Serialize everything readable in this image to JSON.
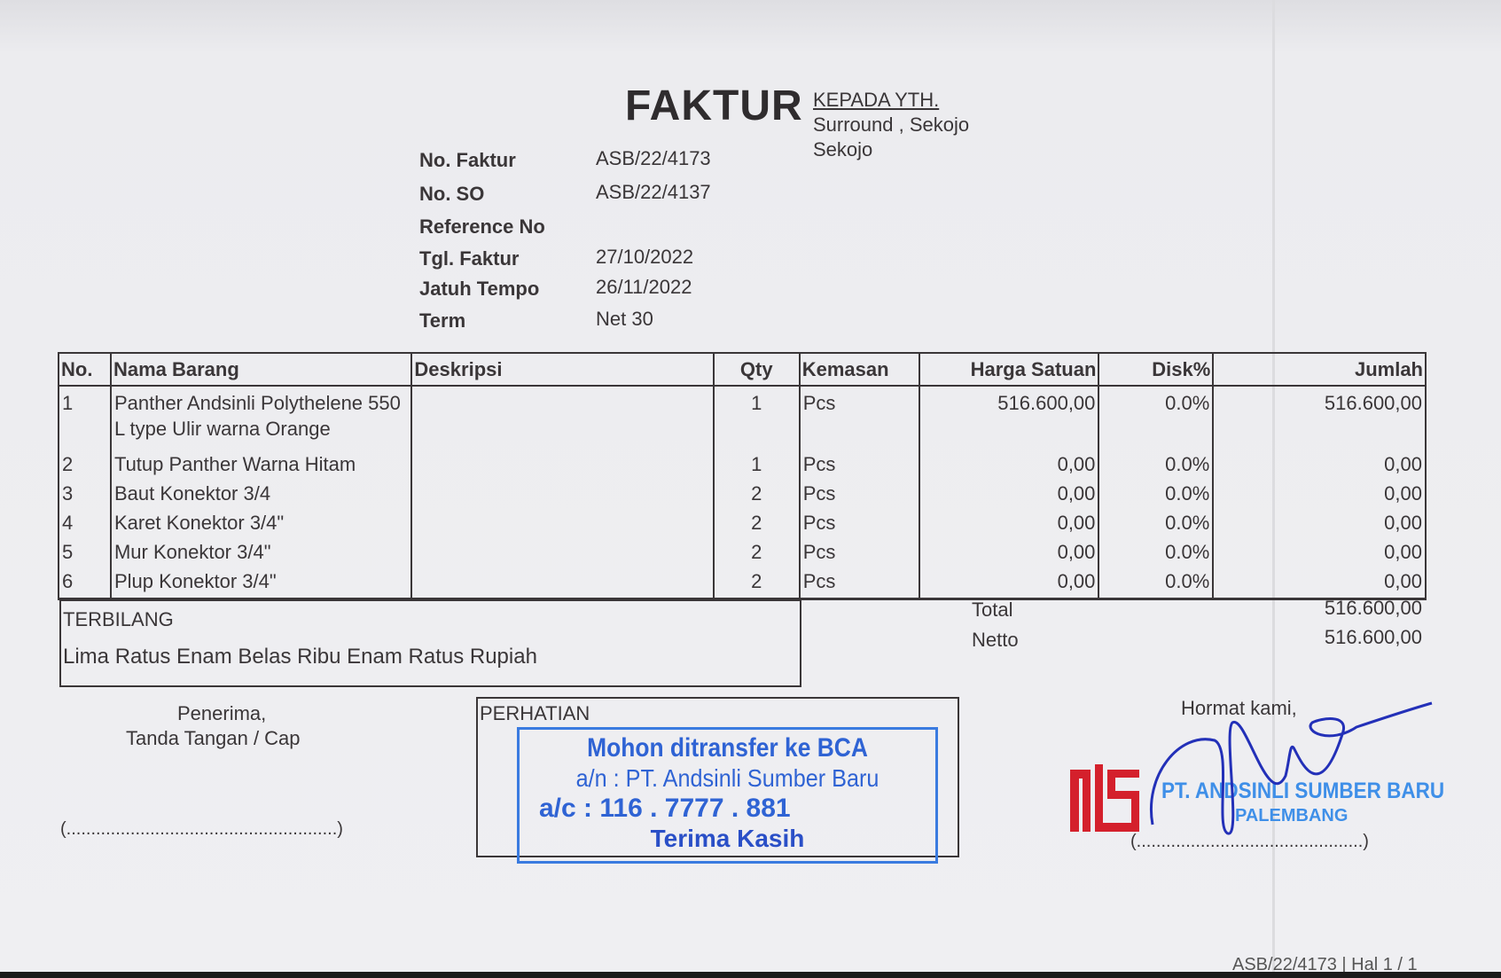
{
  "header": {
    "title": "FAKTUR",
    "recipient_label": "KEPADA YTH.",
    "recipient_line1": "Surround , Sekojo",
    "recipient_line2": "Sekojo"
  },
  "info": [
    {
      "label": "No. Faktur",
      "value": "ASB/22/4173"
    },
    {
      "label": "No. SO",
      "value": "ASB/22/4137"
    },
    {
      "label": "Reference No",
      "value": ""
    },
    {
      "label": "Tgl. Faktur",
      "value": "27/10/2022"
    },
    {
      "label": "Jatuh Tempo",
      "value": "26/11/2022"
    },
    {
      "label": "Term",
      "value": "Net 30"
    }
  ],
  "table": {
    "columns": [
      "No.",
      "Nama Barang",
      "Deskripsi",
      "Qty",
      "Kemasan",
      "Harga Satuan",
      "Disk%",
      "Jumlah"
    ],
    "rows": [
      {
        "no": "1",
        "name": "Panther Andsinli Polythelene 550 L type Ulir warna Orange",
        "desc": "",
        "qty": "1",
        "unit": "Pcs",
        "price": "516.600,00",
        "disc": "0.0%",
        "amount": "516.600,00"
      },
      {
        "no": "2",
        "name": "Tutup Panther Warna Hitam",
        "desc": "",
        "qty": "1",
        "unit": "Pcs",
        "price": "0,00",
        "disc": "0.0%",
        "amount": "0,00"
      },
      {
        "no": "3",
        "name": "Baut Konektor 3/4",
        "desc": "",
        "qty": "2",
        "unit": "Pcs",
        "price": "0,00",
        "disc": "0.0%",
        "amount": "0,00"
      },
      {
        "no": "4",
        "name": "Karet Konektor 3/4\"",
        "desc": "",
        "qty": "2",
        "unit": "Pcs",
        "price": "0,00",
        "disc": "0.0%",
        "amount": "0,00"
      },
      {
        "no": "5",
        "name": "Mur Konektor 3/4\"",
        "desc": "",
        "qty": "2",
        "unit": "Pcs",
        "price": "0,00",
        "disc": "0.0%",
        "amount": "0,00"
      },
      {
        "no": "6",
        "name": "Plup Konektor 3/4\"",
        "desc": "",
        "qty": "2",
        "unit": "Pcs",
        "price": "0,00",
        "disc": "0.0%",
        "amount": "0,00"
      }
    ]
  },
  "terbilang": {
    "label": "TERBILANG",
    "text": "Lima Ratus Enam Belas Ribu Enam Ratus Rupiah"
  },
  "totals": {
    "total_label": "Total",
    "total": "516.600,00",
    "netto_label": "Netto",
    "netto": "516.600,00"
  },
  "receiver": {
    "line1": "Penerima,",
    "line2": "Tanda Tangan / Cap",
    "signature_line": "(.......................................................)"
  },
  "notice": {
    "label": "PERHATIAN",
    "stamp_line1": "Mohon ditransfer ke BCA",
    "stamp_line2": "a/n : PT. Andsinli Sumber Baru",
    "stamp_line3": "a/c : 116 . 7777 . 881",
    "stamp_line4": "Terima Kasih"
  },
  "sender": {
    "closing": "Hormat kami,",
    "company": "PT. ANDSINLI SUMBER BARU",
    "city": "PALEMBANG",
    "signature_line": "(..............................................)",
    "logo_text": "ASB"
  },
  "footer": {
    "page_ref": "ASB/22/4173 | Hal 1 / 1"
  },
  "colors": {
    "ink": "#3a3638",
    "stamp_blue": "#2f63d4",
    "logo_red": "#d4202c",
    "signature_blue": "#2330b8"
  }
}
